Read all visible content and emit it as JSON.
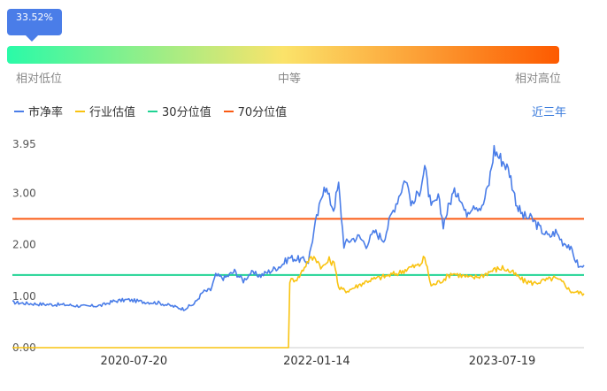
{
  "gauge": {
    "percent_label": "33.52%",
    "percent": 33.52,
    "low_label": "相对低位",
    "mid_label": "中等",
    "high_label": "相对高位",
    "colors": [
      "#2afaa8",
      "#fbe36a",
      "#fd5a00"
    ]
  },
  "range_label": "近三年",
  "chart_data": {
    "type": "line",
    "legend_position": "top-left",
    "grid": false,
    "ylim": [
      0,
      3.95
    ],
    "yticks": [
      "0.00",
      "1.00",
      "2.00",
      "3.00",
      "3.95"
    ],
    "xticks": [
      "2020-07-20",
      "2022-01-14",
      "2023-07-19"
    ],
    "x_range": [
      "2019-07-25",
      "2024-03-18"
    ],
    "series": [
      {
        "name": "市净率",
        "color": "#4a7de8",
        "points": [
          [
            "2019-07-25",
            0.88
          ],
          [
            "2019-09-01",
            0.86
          ],
          [
            "2019-11-01",
            0.84
          ],
          [
            "2020-01-01",
            0.83
          ],
          [
            "2020-03-01",
            0.8
          ],
          [
            "2020-04-15",
            0.82
          ],
          [
            "2020-05-20",
            0.9
          ],
          [
            "2020-07-01",
            0.93
          ],
          [
            "2020-08-15",
            0.89
          ],
          [
            "2020-10-01",
            0.87
          ],
          [
            "2020-11-15",
            0.8
          ],
          [
            "2020-12-15",
            0.75
          ],
          [
            "2021-01-15",
            0.85
          ],
          [
            "2021-02-10",
            1.08
          ],
          [
            "2021-03-05",
            1.12
          ],
          [
            "2021-03-20",
            1.4
          ],
          [
            "2021-04-15",
            1.35
          ],
          [
            "2021-05-15",
            1.48
          ],
          [
            "2021-06-10",
            1.3
          ],
          [
            "2021-07-01",
            1.45
          ],
          [
            "2021-08-01",
            1.4
          ],
          [
            "2021-09-01",
            1.5
          ],
          [
            "2021-10-01",
            1.6
          ],
          [
            "2021-10-25",
            1.75
          ],
          [
            "2021-11-20",
            1.72
          ],
          [
            "2021-12-20",
            1.68
          ],
          [
            "2022-01-10",
            2.4
          ],
          [
            "2022-01-25",
            2.8
          ],
          [
            "2022-02-05",
            3.2
          ],
          [
            "2022-02-20",
            2.9
          ],
          [
            "2022-03-05",
            2.7
          ],
          [
            "2022-03-20",
            3.15
          ],
          [
            "2022-04-05",
            2.0
          ],
          [
            "2022-04-25",
            2.1
          ],
          [
            "2022-05-20",
            2.15
          ],
          [
            "2022-06-10",
            2.0
          ],
          [
            "2022-07-05",
            2.25
          ],
          [
            "2022-08-01",
            2.1
          ],
          [
            "2022-08-25",
            2.6
          ],
          [
            "2022-09-15",
            2.95
          ],
          [
            "2022-10-05",
            3.3
          ],
          [
            "2022-10-25",
            2.75
          ],
          [
            "2022-11-15",
            3.05
          ],
          [
            "2022-12-01",
            3.5
          ],
          [
            "2022-12-20",
            2.7
          ],
          [
            "2023-01-10",
            2.9
          ],
          [
            "2023-01-25",
            2.4
          ],
          [
            "2023-02-20",
            2.95
          ],
          [
            "2023-03-10",
            3.05
          ],
          [
            "2023-04-01",
            2.6
          ],
          [
            "2023-04-25",
            2.8
          ],
          [
            "2023-05-20",
            2.7
          ],
          [
            "2023-06-10",
            3.2
          ],
          [
            "2023-06-25",
            3.85
          ],
          [
            "2023-07-10",
            3.7
          ],
          [
            "2023-07-25",
            3.6
          ],
          [
            "2023-08-10",
            3.4
          ],
          [
            "2023-08-25",
            2.95
          ],
          [
            "2023-09-05",
            2.7
          ],
          [
            "2023-09-20",
            2.55
          ],
          [
            "2023-10-15",
            2.5
          ],
          [
            "2023-11-10",
            2.3
          ],
          [
            "2023-12-05",
            2.15
          ],
          [
            "2023-12-25",
            2.25
          ],
          [
            "2024-01-15",
            2.05
          ],
          [
            "2024-02-01",
            2.0
          ],
          [
            "2024-02-15",
            1.8
          ],
          [
            "2024-03-05",
            1.55
          ],
          [
            "2024-03-18",
            1.6
          ]
        ]
      },
      {
        "name": "行业估值",
        "color": "#f9c311",
        "points": [
          [
            "2019-07-25",
            0.0
          ],
          [
            "2021-10-22",
            0.0
          ],
          [
            "2021-10-26",
            1.3
          ],
          [
            "2021-11-20",
            1.35
          ],
          [
            "2021-12-20",
            1.7
          ],
          [
            "2022-01-10",
            1.75
          ],
          [
            "2022-01-30",
            1.55
          ],
          [
            "2022-02-20",
            1.7
          ],
          [
            "2022-03-10",
            1.6
          ],
          [
            "2022-03-20",
            1.15
          ],
          [
            "2022-04-15",
            1.1
          ],
          [
            "2022-05-15",
            1.2
          ],
          [
            "2022-06-15",
            1.3
          ],
          [
            "2022-07-15",
            1.35
          ],
          [
            "2022-08-15",
            1.4
          ],
          [
            "2022-09-15",
            1.45
          ],
          [
            "2022-10-15",
            1.55
          ],
          [
            "2022-11-15",
            1.6
          ],
          [
            "2022-12-01",
            1.75
          ],
          [
            "2022-12-20",
            1.2
          ],
          [
            "2023-01-20",
            1.3
          ],
          [
            "2023-02-20",
            1.45
          ],
          [
            "2023-03-20",
            1.4
          ],
          [
            "2023-04-20",
            1.35
          ],
          [
            "2023-05-20",
            1.4
          ],
          [
            "2023-06-20",
            1.5
          ],
          [
            "2023-07-20",
            1.55
          ],
          [
            "2023-08-20",
            1.45
          ],
          [
            "2023-09-20",
            1.3
          ],
          [
            "2023-10-20",
            1.25
          ],
          [
            "2023-11-20",
            1.3
          ],
          [
            "2023-12-20",
            1.35
          ],
          [
            "2024-01-20",
            1.25
          ],
          [
            "2024-02-05",
            1.1
          ],
          [
            "2024-03-18",
            1.05
          ]
        ]
      },
      {
        "name": "30分位值",
        "color": "#1fd393",
        "constant": 1.41
      },
      {
        "name": "70分位值",
        "color": "#fa5a13",
        "constant": 2.5
      }
    ]
  }
}
